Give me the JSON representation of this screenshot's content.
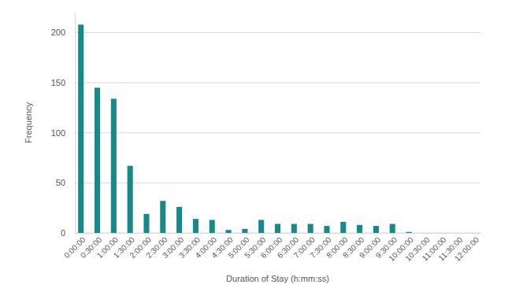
{
  "chart_data": {
    "type": "bar",
    "x_label": "Duration of Stay (h:mm:ss)",
    "y_label": "Frequency",
    "categories": [
      "0:00:00",
      "0:30:00",
      "1:00:00",
      "1:30:00",
      "2:00:00",
      "2:30:00",
      "3:00:00",
      "3:30:00",
      "4:00:00",
      "4:30:00",
      "5:00:00",
      "5:30:00",
      "6:00:00",
      "6:30:00",
      "7:00:00",
      "7:30:00",
      "8:00:00",
      "8:30:00",
      "9:00:00",
      "9:30:00",
      "10:00:00",
      "10:30:00",
      "11:00:00",
      "11:30:00",
      "12:00:00"
    ],
    "values": [
      208,
      145,
      134,
      67,
      19,
      32,
      26,
      14,
      13,
      3,
      4,
      13,
      9,
      9,
      9,
      7,
      11,
      8,
      7,
      9,
      1,
      0,
      0,
      0,
      0
    ],
    "color": "#17898a",
    "ylim": [
      0,
      220
    ],
    "yticks": [
      0,
      50,
      100,
      150,
      200
    ],
    "grid": true
  }
}
